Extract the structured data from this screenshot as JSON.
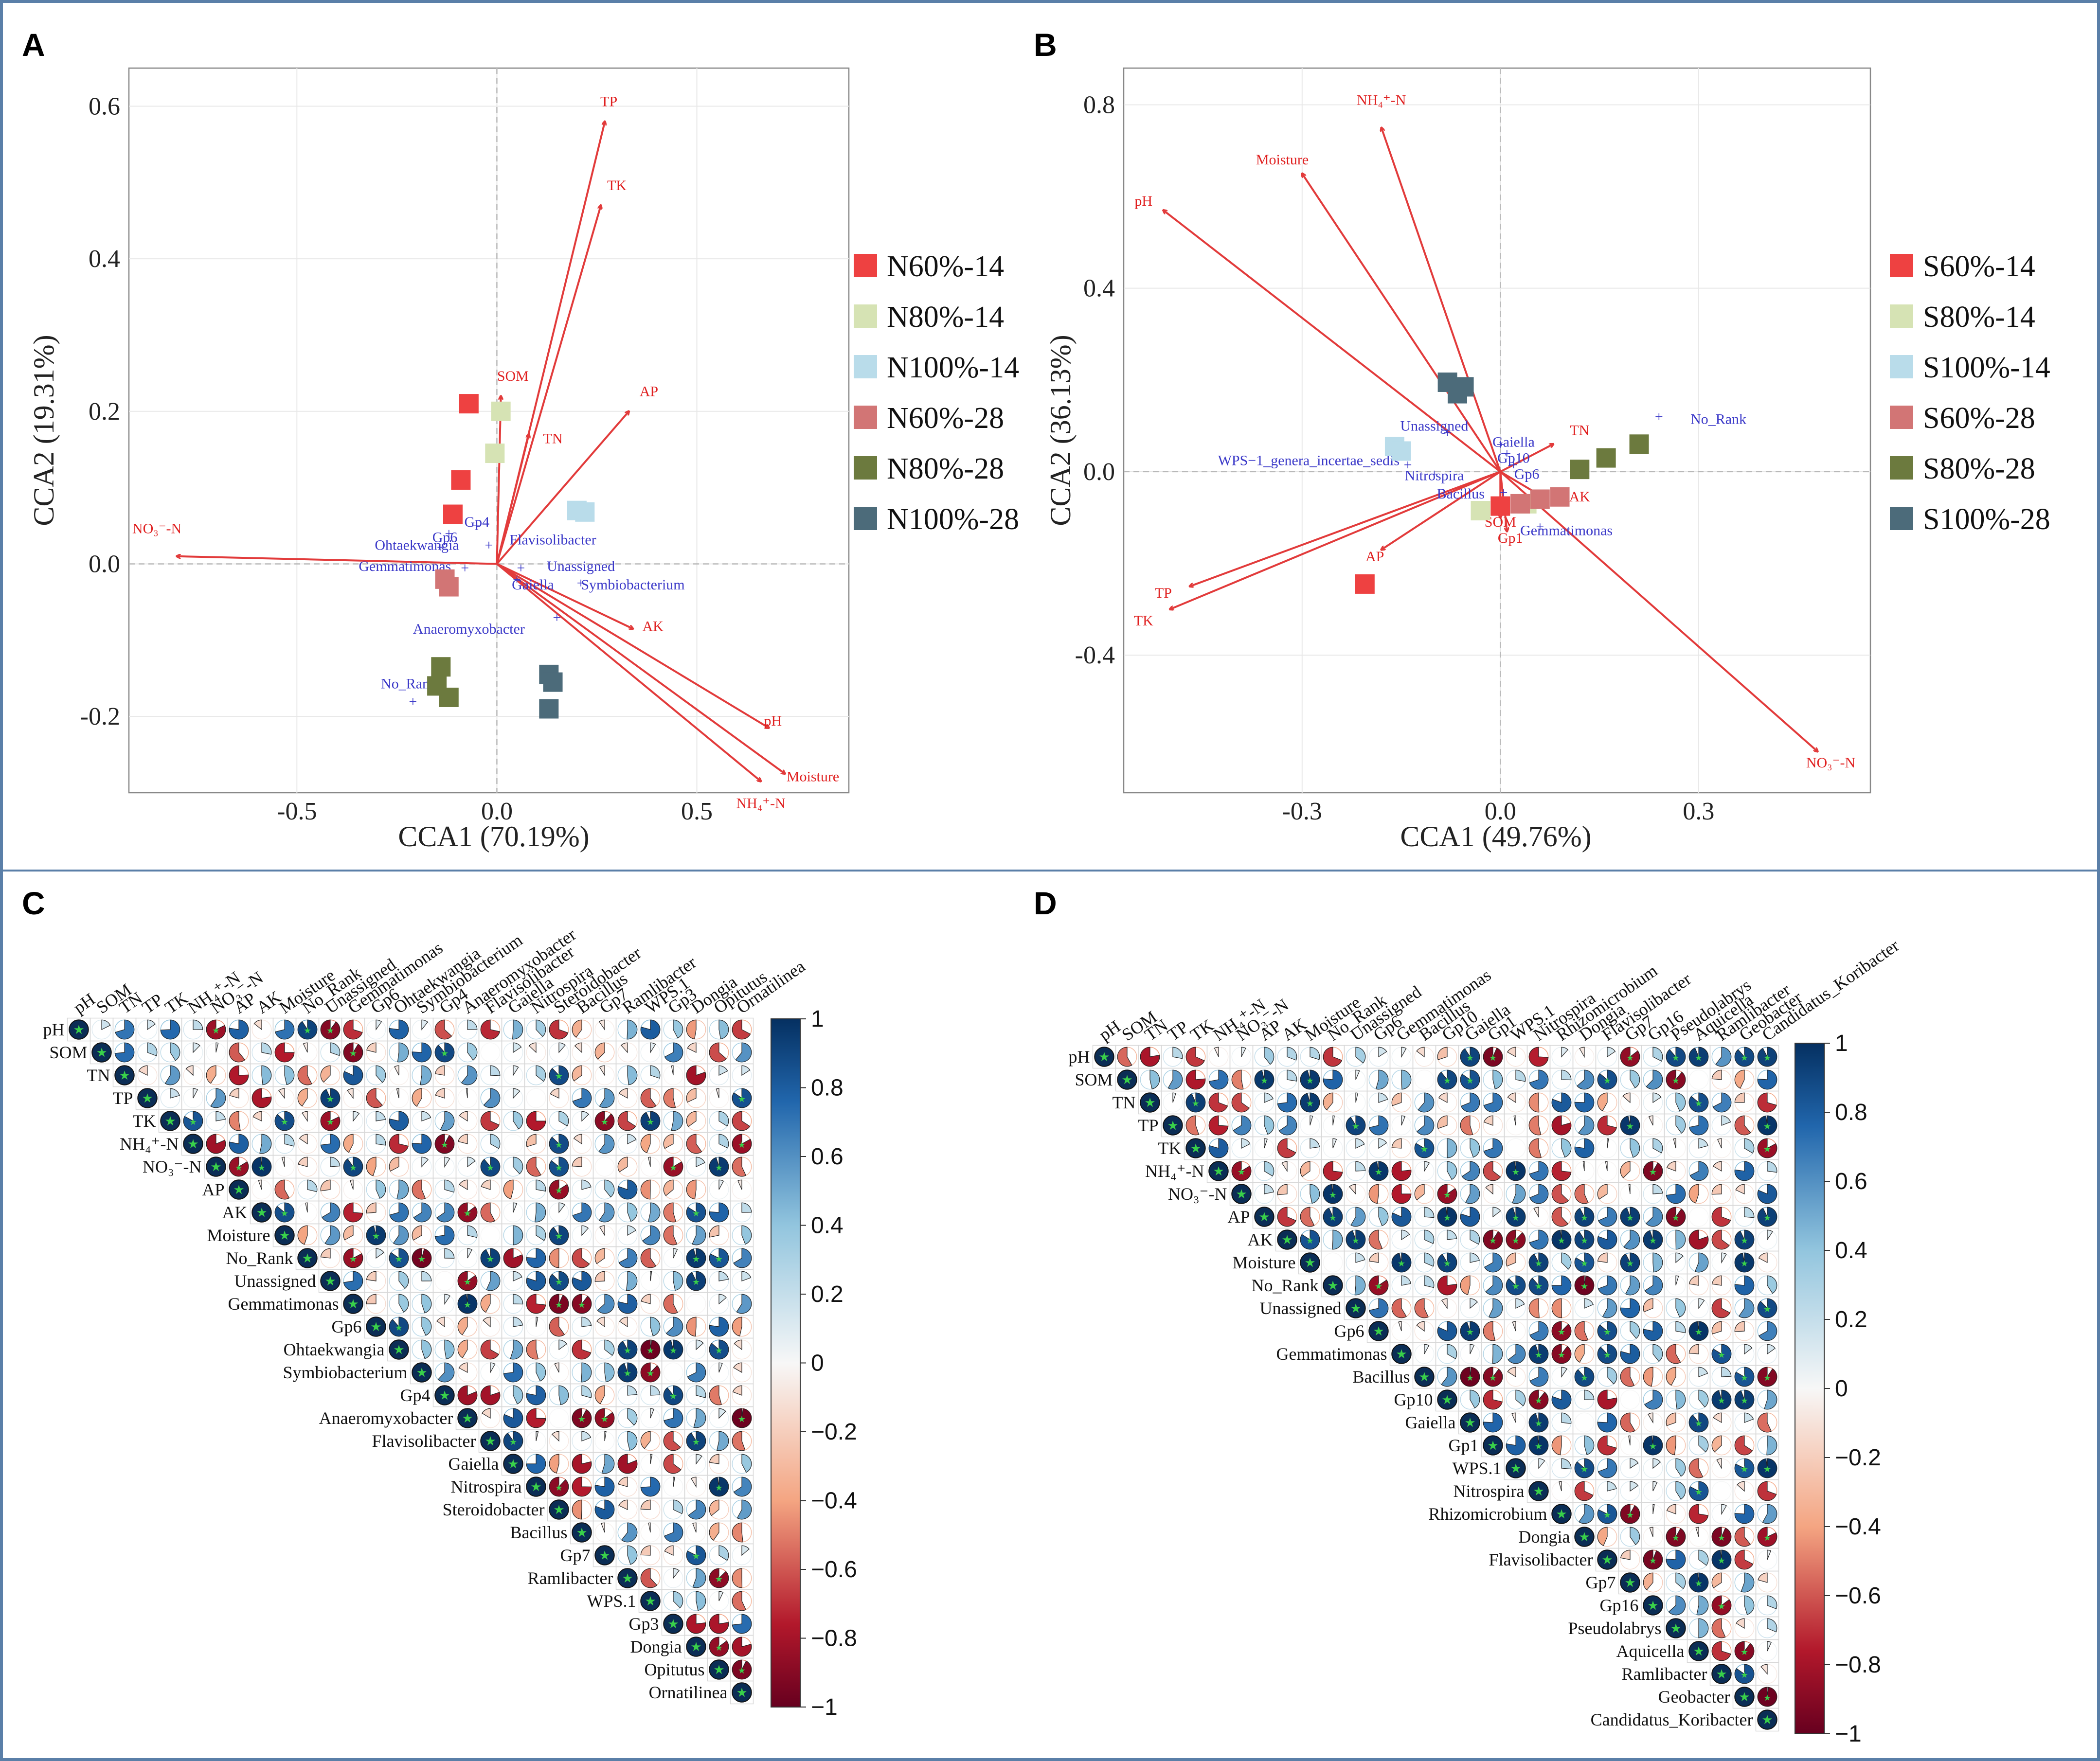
{
  "panels": {
    "A": {
      "letter": "A",
      "xlabel": "CCA1 (70.19%)",
      "ylabel": "CCA2 (19.31%)",
      "legend": [
        {
          "label": "N60%-14",
          "color": "#ee4141"
        },
        {
          "label": "N80%-14",
          "color": "#d6e3b4"
        },
        {
          "label": "N100%-14",
          "color": "#b9dcea"
        },
        {
          "label": "N60%-28",
          "color": "#d27575"
        },
        {
          "label": "N80%-28",
          "color": "#6c7a3e"
        },
        {
          "label": "N100%-28",
          "color": "#4c6b7a"
        }
      ]
    },
    "B": {
      "letter": "B",
      "xlabel": "CCA1 (49.76%)",
      "ylabel": "CCA2 (36.13%)",
      "legend": [
        {
          "label": "S60%-14",
          "color": "#ee4141"
        },
        {
          "label": "S80%-14",
          "color": "#d6e3b4"
        },
        {
          "label": "S100%-14",
          "color": "#b9dcea"
        },
        {
          "label": "S60%-28",
          "color": "#d27575"
        },
        {
          "label": "S80%-28",
          "color": "#6c7a3e"
        },
        {
          "label": "S100%-28",
          "color": "#4c6b7a"
        }
      ]
    },
    "C": {
      "letter": "C"
    },
    "D": {
      "letter": "D"
    }
  },
  "colors": {
    "env_arrow": "#e23b3b",
    "taxa": "#3a38c8",
    "neg_end": "#67001f",
    "pos_end": "#053061",
    "mid": "#f7f7f7",
    "frame": "#5a7fa8"
  },
  "chart_data": [
    {
      "type": "scatter",
      "title": "A",
      "xlabel": "CCA1 (70.19%)",
      "ylabel": "CCA2 (19.31%)",
      "xlim": [
        -0.92,
        0.88
      ],
      "ylim": [
        -0.3,
        0.65
      ],
      "xticks": [
        "-0.5",
        "0.0",
        "0.5"
      ],
      "xtick_values": [
        -0.5,
        0.0,
        0.5
      ],
      "yticks": [
        "0.6",
        "0.4",
        "0.2",
        "0.0",
        "-0.2"
      ],
      "ytick_values": [
        0.6,
        0.4,
        0.2,
        0.0,
        -0.2
      ],
      "samples": [
        {
          "group": 0,
          "x": -0.07,
          "y": 0.21
        },
        {
          "group": 0,
          "x": -0.09,
          "y": 0.11
        },
        {
          "group": 0,
          "x": -0.11,
          "y": 0.065
        },
        {
          "group": 1,
          "x": 0.01,
          "y": 0.2
        },
        {
          "group": 1,
          "x": -0.005,
          "y": 0.145
        },
        {
          "group": 2,
          "x": 0.2,
          "y": 0.07
        },
        {
          "group": 2,
          "x": 0.22,
          "y": 0.068
        },
        {
          "group": 3,
          "x": -0.13,
          "y": -0.02
        },
        {
          "group": 3,
          "x": -0.12,
          "y": -0.03
        },
        {
          "group": 4,
          "x": -0.14,
          "y": -0.135
        },
        {
          "group": 4,
          "x": -0.12,
          "y": -0.175
        },
        {
          "group": 4,
          "x": -0.15,
          "y": -0.16
        },
        {
          "group": 5,
          "x": 0.13,
          "y": -0.145
        },
        {
          "group": 5,
          "x": 0.14,
          "y": -0.155
        },
        {
          "group": 5,
          "x": 0.13,
          "y": -0.19
        }
      ],
      "env": [
        {
          "label": "TP",
          "x": 0.27,
          "y": 0.58,
          "lx": 0.28,
          "ly": 0.6
        },
        {
          "label": "TK",
          "x": 0.26,
          "y": 0.47,
          "lx": 0.3,
          "ly": 0.49
        },
        {
          "label": "AP",
          "x": 0.33,
          "y": 0.2,
          "lx": 0.38,
          "ly": 0.22
        },
        {
          "label": "SOM",
          "x": 0.01,
          "y": 0.22,
          "lx": 0.04,
          "ly": 0.24
        },
        {
          "label": "TN",
          "x": 0.08,
          "y": 0.17,
          "lx": 0.14,
          "ly": 0.158
        },
        {
          "label": "NO₃⁻-N",
          "x": -0.8,
          "y": 0.01,
          "lx": -0.85,
          "ly": 0.04
        },
        {
          "label": "AK",
          "x": 0.34,
          "y": -0.085,
          "lx": 0.39,
          "ly": -0.088
        },
        {
          "label": "pH",
          "x": 0.68,
          "y": -0.215,
          "lx": 0.69,
          "ly": -0.212
        },
        {
          "label": "Moisture",
          "x": 0.72,
          "y": -0.275,
          "lx": 0.79,
          "ly": -0.285
        },
        {
          "label": "NH₄⁺-N",
          "x": 0.66,
          "y": -0.285,
          "lx": 0.66,
          "ly": -0.32
        }
      ],
      "taxa": [
        {
          "label": "Ohtaekwangia",
          "x": -0.14,
          "y": 0.022,
          "lx": -0.2,
          "ly": 0.025
        },
        {
          "label": "Gemmatimonas",
          "x": -0.08,
          "y": -0.005,
          "lx": -0.23,
          "ly": -0.003
        },
        {
          "label": "Gp6",
          "x": -0.12,
          "y": 0.04,
          "lx": -0.13,
          "ly": 0.035
        },
        {
          "label": "Gp4",
          "x": -0.05,
          "y": 0.05,
          "lx": -0.05,
          "ly": 0.055
        },
        {
          "label": "Flavisolibacter",
          "x": -0.02,
          "y": 0.025,
          "lx": 0.14,
          "ly": 0.032
        },
        {
          "label": "Unassigned",
          "x": 0.06,
          "y": -0.005,
          "lx": 0.21,
          "ly": -0.003
        },
        {
          "label": "Gaiella",
          "x": 0.05,
          "y": -0.02,
          "lx": 0.09,
          "ly": -0.027
        },
        {
          "label": "Symbiobacterium",
          "x": 0.21,
          "y": -0.025,
          "lx": 0.34,
          "ly": -0.027
        },
        {
          "label": "Anaeromyxobacter",
          "x": 0.15,
          "y": -0.07,
          "lx": -0.07,
          "ly": -0.085
        },
        {
          "label": "No_Rank",
          "x": -0.21,
          "y": -0.18,
          "lx": -0.22,
          "ly": -0.157
        }
      ]
    },
    {
      "type": "scatter",
      "title": "B",
      "xlabel": "CCA1 (49.76%)",
      "ylabel": "CCA2 (36.13%)",
      "xlim": [
        -0.57,
        0.56
      ],
      "ylim": [
        -0.7,
        0.88
      ],
      "xticks": [
        "-0.3",
        "0.0",
        "0.3"
      ],
      "xtick_values": [
        -0.3,
        0.0,
        0.3
      ],
      "yticks": [
        "0.8",
        "0.4",
        "0.0",
        "-0.4"
      ],
      "ytick_values": [
        0.8,
        0.4,
        0.0,
        -0.4
      ],
      "samples": [
        {
          "group": 0,
          "x": 0.0,
          "y": -0.075
        },
        {
          "group": 0,
          "x": -0.205,
          "y": -0.245
        },
        {
          "group": 1,
          "x": -0.03,
          "y": -0.085
        },
        {
          "group": 1,
          "x": 0.04,
          "y": -0.07
        },
        {
          "group": 2,
          "x": -0.16,
          "y": 0.055
        },
        {
          "group": 2,
          "x": -0.15,
          "y": 0.045
        },
        {
          "group": 3,
          "x": 0.03,
          "y": -0.07
        },
        {
          "group": 3,
          "x": 0.06,
          "y": -0.06
        },
        {
          "group": 3,
          "x": 0.09,
          "y": -0.055
        },
        {
          "group": 4,
          "x": 0.12,
          "y": 0.005
        },
        {
          "group": 4,
          "x": 0.16,
          "y": 0.03
        },
        {
          "group": 4,
          "x": 0.21,
          "y": 0.06
        },
        {
          "group": 5,
          "x": -0.08,
          "y": 0.195
        },
        {
          "group": 5,
          "x": -0.055,
          "y": 0.185
        },
        {
          "group": 5,
          "x": -0.065,
          "y": 0.17
        }
      ],
      "env": [
        {
          "label": "NH₄⁺-N",
          "x": -0.18,
          "y": 0.75,
          "lx": -0.18,
          "ly": 0.8
        },
        {
          "label": "Moisture",
          "x": -0.3,
          "y": 0.65,
          "lx": -0.33,
          "ly": 0.67
        },
        {
          "label": "pH",
          "x": -0.51,
          "y": 0.57,
          "lx": -0.54,
          "ly": 0.58
        },
        {
          "label": "TN",
          "x": 0.08,
          "y": 0.06,
          "lx": 0.12,
          "ly": 0.08
        },
        {
          "label": "AK",
          "x": 0.07,
          "y": -0.06,
          "lx": 0.12,
          "ly": -0.065
        },
        {
          "label": "SOM",
          "x": 0.0,
          "y": -0.1,
          "lx": 0.0,
          "ly": -0.12
        },
        {
          "label": "Gp1",
          "x": 0.01,
          "y": -0.13,
          "lx": 0.015,
          "ly": -0.155
        },
        {
          "label": "AP",
          "x": -0.18,
          "y": -0.17,
          "lx": -0.19,
          "ly": -0.195
        },
        {
          "label": "TP",
          "x": -0.47,
          "y": -0.25,
          "lx": -0.51,
          "ly": -0.275
        },
        {
          "label": "TK",
          "x": -0.5,
          "y": -0.3,
          "lx": -0.54,
          "ly": -0.335
        },
        {
          "label": "NO₃⁻-N",
          "x": 0.48,
          "y": -0.61,
          "lx": 0.5,
          "ly": -0.645
        }
      ],
      "taxa": [
        {
          "label": "No_Rank",
          "x": 0.24,
          "y": 0.12,
          "lx": 0.33,
          "ly": 0.115
        },
        {
          "label": "Unassigned",
          "x": -0.08,
          "y": 0.085,
          "lx": -0.1,
          "ly": 0.1
        },
        {
          "label": "Gaiella",
          "x": 0.0,
          "y": 0.06,
          "lx": 0.02,
          "ly": 0.065
        },
        {
          "label": "Gp10",
          "x": 0.01,
          "y": 0.04,
          "lx": 0.02,
          "ly": 0.03
        },
        {
          "label": "Gp6",
          "x": 0.02,
          "y": 0.015,
          "lx": 0.04,
          "ly": -0.005
        },
        {
          "label": "WPS−1_genera_incertae_sedis",
          "x": -0.14,
          "y": 0.015,
          "lx": -0.29,
          "ly": 0.025
        },
        {
          "label": "Nitrospira",
          "x": -0.1,
          "y": -0.005,
          "lx": -0.1,
          "ly": -0.008
        },
        {
          "label": "Bacillus",
          "x": 0.005,
          "y": -0.045,
          "lx": -0.06,
          "ly": -0.048
        },
        {
          "label": "Gemmatimonas",
          "x": 0.06,
          "y": -0.12,
          "lx": 0.1,
          "ly": -0.128
        }
      ]
    },
    {
      "type": "heatmap",
      "title": "C",
      "shape": "upper-triangle pie glyphs",
      "colorbar": {
        "min": -1,
        "max": 1,
        "ticks": [
          "1",
          "0.8",
          "0.6",
          "0.4",
          "0.2",
          "0",
          "−0.2",
          "−0.4",
          "−0.6",
          "−0.8",
          "−1"
        ]
      },
      "labels": [
        "pH",
        "SOM",
        "TN",
        "TP",
        "TK",
        "NH₄⁺-N",
        "NO₃⁻-N",
        "AP",
        "AK",
        "Moisture",
        "No_Rank",
        "Unassigned",
        "Gemmatimonas",
        "Gp6",
        "Ohtaekwangia",
        "Symbiobacterium",
        "Gp4",
        "Anaeromyxobacter",
        "Flavisolibacter",
        "Gaiella",
        "Nitrospira",
        "Steroidobacter",
        "Bacillus",
        "Gp7",
        "Ramlibacter",
        "WPS.1",
        "Gp3",
        "Dongia",
        "Opitutus",
        "Ornatilinea"
      ]
    },
    {
      "type": "heatmap",
      "title": "D",
      "shape": "upper-triangle pie glyphs",
      "colorbar": {
        "min": -1,
        "max": 1,
        "ticks": [
          "1",
          "0.8",
          "0.6",
          "0.4",
          "0.2",
          "0",
          "−0.2",
          "−0.4",
          "−0.6",
          "−0.8",
          "−1"
        ]
      },
      "labels": [
        "pH",
        "SOM",
        "TN",
        "TP",
        "TK",
        "NH₄⁺-N",
        "NO₃⁻-N",
        "AP",
        "AK",
        "Moisture",
        "No_Rank",
        "Unassigned",
        "Gp6",
        "Gemmatimonas",
        "Bacillus",
        "Gp10",
        "Gaiella",
        "Gp1",
        "WPS.1",
        "Nitrospira",
        "Rhizomicrobium",
        "Dongia",
        "Flavisolibacter",
        "Gp7",
        "Gp16",
        "Pseudolabrys",
        "Aquicella",
        "Ramlibacter",
        "Geobacter",
        "Candidatus_Koribacter"
      ]
    }
  ]
}
